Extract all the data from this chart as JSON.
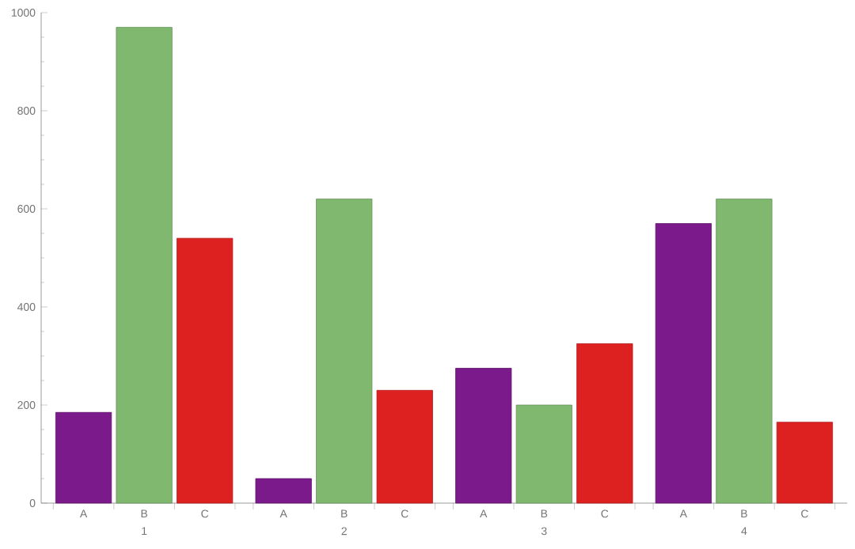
{
  "chart_data": {
    "type": "bar",
    "categories": [
      "1",
      "2",
      "3",
      "4"
    ],
    "series": [
      {
        "name": "A",
        "color": "#7b1a8a",
        "values": [
          185,
          50,
          275,
          570
        ]
      },
      {
        "name": "B",
        "color": "#80b870",
        "values": [
          970,
          620,
          200,
          620
        ]
      },
      {
        "name": "C",
        "color": "#dd2020",
        "values": [
          540,
          230,
          325,
          165
        ]
      }
    ],
    "ylim": [
      0,
      1000
    ],
    "yticks": [
      0,
      200,
      400,
      600,
      800,
      1000
    ]
  }
}
